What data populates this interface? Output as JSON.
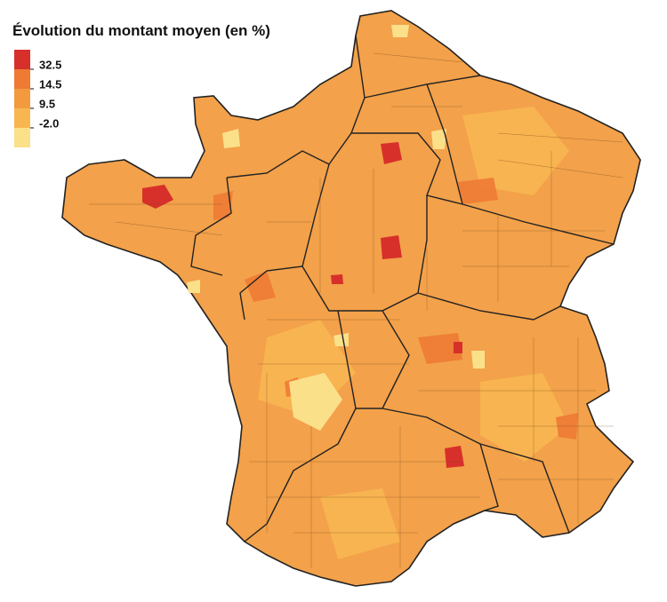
{
  "legend": {
    "title": "Évolution du montant moyen (en %)",
    "colors": [
      "#d7302a",
      "#ee7a34",
      "#f39a3f",
      "#f8b651",
      "#fbe08a"
    ],
    "breaks": [
      32.5,
      14.5,
      9.5,
      {
        "value": -2,
        "label": "-2.0"
      }
    ]
  }
}
